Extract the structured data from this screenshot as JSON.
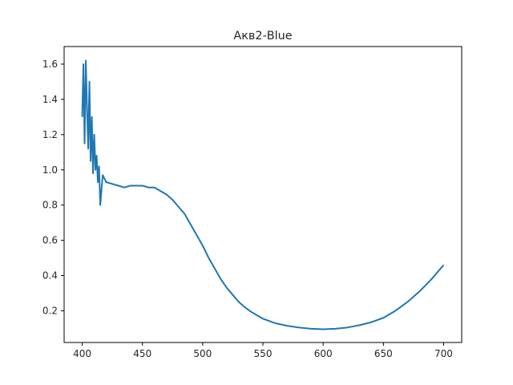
{
  "chart_data": {
    "type": "line",
    "title": "Акв2-Blue",
    "xlabel": "",
    "ylabel": "",
    "xlim": [
      385,
      715
    ],
    "ylim": [
      0.02,
      1.7
    ],
    "xticks": [
      400,
      450,
      500,
      550,
      600,
      650,
      700
    ],
    "yticks": [
      0.2,
      0.4,
      0.6,
      0.8,
      1.0,
      1.2,
      1.4,
      1.6
    ],
    "xtick_labels": [
      "400",
      "450",
      "500",
      "550",
      "600",
      "650",
      "700"
    ],
    "ytick_labels": [
      "0.2",
      "0.4",
      "0.6",
      "0.8",
      "1.0",
      "1.2",
      "1.4",
      "1.6"
    ],
    "grid": false,
    "series": [
      {
        "color": "#1f77b4",
        "x": [
          400,
          401,
          402,
          403,
          404,
          405,
          406,
          407,
          408,
          409,
          410,
          411,
          412,
          413,
          414,
          415,
          417,
          420,
          425,
          430,
          435,
          440,
          445,
          450,
          455,
          460,
          465,
          470,
          475,
          480,
          485,
          490,
          495,
          500,
          505,
          510,
          515,
          520,
          525,
          530,
          535,
          540,
          545,
          550,
          560,
          570,
          580,
          590,
          600,
          610,
          620,
          630,
          640,
          650,
          660,
          670,
          680,
          690,
          700
        ],
        "y": [
          1.3,
          1.6,
          1.15,
          1.62,
          1.35,
          1.12,
          1.5,
          1.05,
          1.3,
          0.98,
          1.2,
          1.0,
          1.08,
          0.93,
          1.02,
          0.8,
          0.97,
          0.93,
          0.92,
          0.91,
          0.9,
          0.91,
          0.91,
          0.91,
          0.9,
          0.9,
          0.88,
          0.86,
          0.83,
          0.79,
          0.75,
          0.69,
          0.63,
          0.57,
          0.5,
          0.44,
          0.38,
          0.33,
          0.29,
          0.25,
          0.22,
          0.195,
          0.175,
          0.155,
          0.13,
          0.115,
          0.105,
          0.098,
          0.095,
          0.098,
          0.105,
          0.118,
          0.135,
          0.16,
          0.2,
          0.25,
          0.31,
          0.38,
          0.46
        ]
      }
    ]
  }
}
